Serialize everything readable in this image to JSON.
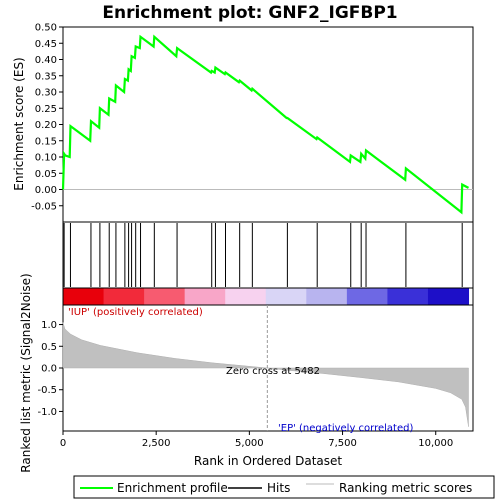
{
  "chart_data": {
    "type": "line",
    "title": "Enrichment plot: GNF2_IGFBP1",
    "top_panel": {
      "ylabel": "Enrichment score (ES)",
      "ylim": [
        -0.1,
        0.5
      ],
      "yticks": [
        -0.05,
        0.0,
        0.05,
        0.1,
        0.15,
        0.2,
        0.25,
        0.3,
        0.35,
        0.4,
        0.45,
        0.5
      ],
      "ytick_labels": [
        "-0.05",
        "0.00",
        "0.05",
        "0.10",
        "0.15",
        "0.20",
        "0.25",
        "0.30",
        "0.35",
        "0.40",
        "0.45",
        "0.50"
      ],
      "series": [
        {
          "name": "Enrichment profile",
          "color": "#00ff00",
          "x": [
            0,
            30,
            60,
            180,
            200,
            730,
            750,
            970,
            990,
            1220,
            1240,
            1400,
            1420,
            1640,
            1660,
            1740,
            1760,
            1820,
            1840,
            1930,
            1950,
            2060,
            2080,
            2430,
            2450,
            3040,
            3060,
            3970,
            3990,
            4070,
            4090,
            4340,
            4360,
            4720,
            4740,
            5060,
            5080,
            6000,
            6020,
            6800,
            6820,
            7700,
            7720,
            7980,
            8000,
            8110,
            8130,
            9180,
            9200,
            10690,
            10710,
            10880
          ],
          "y": [
            0.0,
            0.11,
            0.105,
            0.1,
            0.195,
            0.15,
            0.21,
            0.19,
            0.25,
            0.23,
            0.28,
            0.27,
            0.32,
            0.3,
            0.34,
            0.335,
            0.37,
            0.365,
            0.41,
            0.405,
            0.44,
            0.435,
            0.47,
            0.44,
            0.47,
            0.41,
            0.435,
            0.36,
            0.365,
            0.36,
            0.375,
            0.355,
            0.36,
            0.33,
            0.335,
            0.305,
            0.31,
            0.22,
            0.22,
            0.155,
            0.16,
            0.085,
            0.105,
            0.085,
            0.11,
            0.095,
            0.12,
            0.03,
            0.065,
            -0.07,
            0.015,
            0.005
          ]
        }
      ]
    },
    "hits": {
      "name": "Hits",
      "positions": [
        30,
        200,
        750,
        990,
        1240,
        1420,
        1660,
        1760,
        1840,
        1950,
        2080,
        2450,
        3060,
        3990,
        4090,
        4360,
        4740,
        5080,
        6020,
        6820,
        7720,
        8000,
        8130,
        9200,
        10710
      ]
    },
    "heatmap_bar": {
      "colors": [
        "#e8000b",
        "#f22a3a",
        "#f75b70",
        "#f8a6c8",
        "#f7d2ef",
        "#d9d5f6",
        "#b8b4ef",
        "#6e68e4",
        "#3a30d8",
        "#1d0fc8"
      ]
    },
    "bottom_panel": {
      "ylabel": "Ranked list metric (Signal2Noise)",
      "xlabel": "Rank in Ordered Dataset",
      "ylim": [
        -1.45,
        1.45
      ],
      "yticks": [
        -1.0,
        -0.5,
        0.0,
        0.5,
        1.0
      ],
      "ytick_labels": [
        "-1.0",
        "-0.5",
        "0.0",
        "0.5",
        "1.0"
      ],
      "xlim": [
        0,
        11000
      ],
      "xticks": [
        0,
        2500,
        5000,
        7500,
        10000
      ],
      "xtick_labels": [
        "0",
        "2,500",
        "5,000",
        "7,500",
        "10,000"
      ],
      "metric_x": [
        0,
        50,
        200,
        500,
        1000,
        2000,
        3000,
        4000,
        5000,
        5482,
        6000,
        7000,
        8000,
        9000,
        10000,
        10400,
        10700,
        10800,
        10880
      ],
      "metric_y": [
        1.05,
        0.9,
        0.78,
        0.65,
        0.52,
        0.35,
        0.22,
        0.12,
        0.04,
        0.0,
        -0.05,
        -0.13,
        -0.22,
        -0.32,
        -0.47,
        -0.57,
        -0.72,
        -0.9,
        -1.35
      ],
      "zero_cross_rank": 5482,
      "annotations": {
        "pos_label": "'IUP' (positively correlated)",
        "neg_label": "'EP' (negatively correlated)",
        "zero_cross": "Zero cross at 5482"
      },
      "pos_color": "#cc0000",
      "neg_color": "#0000cc"
    },
    "legend": {
      "placement": "bottom",
      "items": [
        {
          "label": "Enrichment profile",
          "color": "#00ff00"
        },
        {
          "label": "Hits",
          "color": "#000000"
        },
        {
          "label": "Ranking metric scores",
          "color": "#bbbbbb"
        }
      ]
    }
  }
}
